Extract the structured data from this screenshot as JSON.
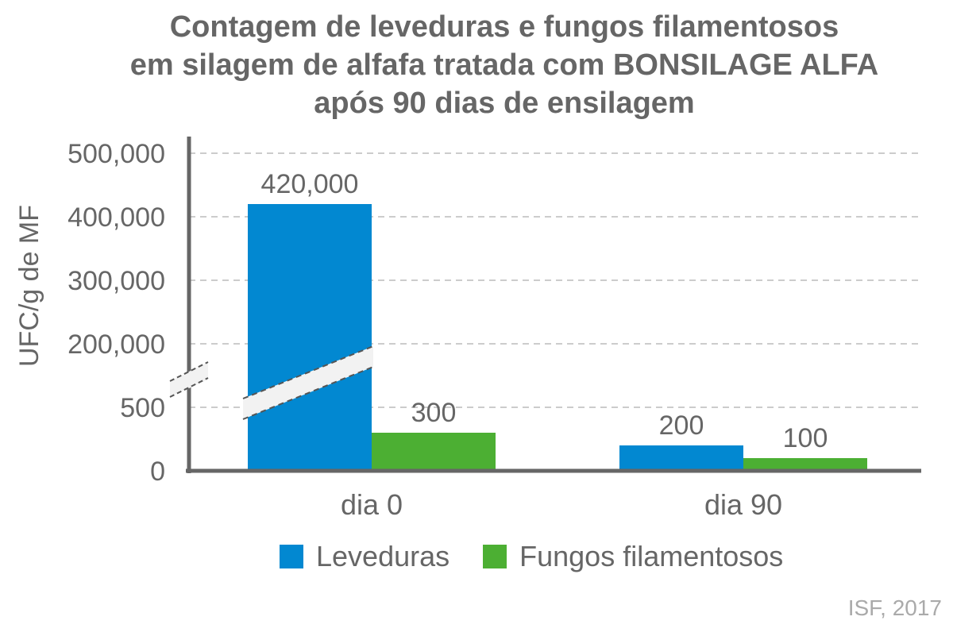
{
  "title_lines": [
    "Contagem de leveduras e fungos filamentosos",
    "em silagem de alfafa tratada com BONSILAGE ALFA",
    "após 90 dias de ensilagem"
  ],
  "source": "ISF, 2017",
  "colors": {
    "series1": "#0288D1",
    "series2": "#4CAF33",
    "axis": "#666666",
    "grid": "#bbbbbb",
    "text": "#666666"
  },
  "chart_data": {
    "type": "bar",
    "title": "Contagem de leveduras e fungos filamentosos em silagem de alfafa tratada com BONSILAGE ALFA após 90 dias de ensilagem",
    "ylabel": "UFC/g de MF",
    "xlabel": "",
    "categories": [
      "dia 0",
      "dia 90"
    ],
    "series": [
      {
        "name": "Leveduras",
        "values": [
          420000,
          200
        ],
        "data_labels": [
          "420,000",
          "200"
        ]
      },
      {
        "name": "Fungos filamentosos",
        "values": [
          300,
          100
        ],
        "data_labels": [
          "300",
          "100"
        ]
      }
    ],
    "y_ticks": [
      {
        "value": 0,
        "label": "0"
      },
      {
        "value": 500,
        "label": "500"
      },
      {
        "value": 200000,
        "label": "200,000"
      },
      {
        "value": 300000,
        "label": "300,000"
      },
      {
        "value": 400000,
        "label": "400,000"
      },
      {
        "value": 500000,
        "label": "500,000"
      }
    ],
    "axis_break": true,
    "grid": true,
    "legend_position": "bottom"
  }
}
